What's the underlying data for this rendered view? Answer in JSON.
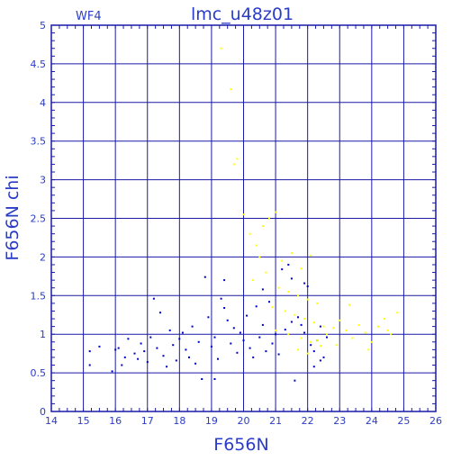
{
  "chart_data": {
    "type": "scatter",
    "title": "lmc_u48z01",
    "chip": "WF4",
    "xlabel": "F656N",
    "ylabel": "F656N chi",
    "xlim": [
      14,
      26
    ],
    "ylim": [
      0,
      5
    ],
    "xticks": [
      "14",
      "15",
      "16",
      "17",
      "18",
      "19",
      "20",
      "21",
      "22",
      "23",
      "24",
      "25",
      "26"
    ],
    "yticks": [
      "0",
      "0.5",
      "1",
      "1.5",
      "2",
      "2.5",
      "3",
      "3.5",
      "4",
      "4.5",
      "5"
    ],
    "grid": true,
    "axis_color": "#1a1aa8",
    "series": [
      {
        "color": "#0000cc",
        "points": [
          [
            15.2,
            0.78
          ],
          [
            15.2,
            0.6
          ],
          [
            15.5,
            0.84
          ],
          [
            15.9,
            0.52
          ],
          [
            16.0,
            0.8
          ],
          [
            16.1,
            0.82
          ],
          [
            16.2,
            0.6
          ],
          [
            16.3,
            0.7
          ],
          [
            16.4,
            0.94
          ],
          [
            16.6,
            0.75
          ],
          [
            16.7,
            0.68
          ],
          [
            16.8,
            0.88
          ],
          [
            16.9,
            0.78
          ],
          [
            17.0,
            0.64
          ],
          [
            17.1,
            0.96
          ],
          [
            17.2,
            1.46
          ],
          [
            17.3,
            0.82
          ],
          [
            17.4,
            1.28
          ],
          [
            17.5,
            0.72
          ],
          [
            17.6,
            0.58
          ],
          [
            17.7,
            1.05
          ],
          [
            17.8,
            0.86
          ],
          [
            17.9,
            0.66
          ],
          [
            18.0,
            0.94
          ],
          [
            18.1,
            1.02
          ],
          [
            18.2,
            0.8
          ],
          [
            18.3,
            0.7
          ],
          [
            18.4,
            1.1
          ],
          [
            18.5,
            0.62
          ],
          [
            18.6,
            0.9
          ],
          [
            18.7,
            0.42
          ],
          [
            18.8,
            1.74
          ],
          [
            18.9,
            1.22
          ],
          [
            19.0,
            0.84
          ],
          [
            19.1,
            0.96
          ],
          [
            19.2,
            0.68
          ],
          [
            19.3,
            1.46
          ],
          [
            19.4,
            1.34
          ],
          [
            19.5,
            1.18
          ],
          [
            19.6,
            0.88
          ],
          [
            19.7,
            1.08
          ],
          [
            19.8,
            0.76
          ],
          [
            19.9,
            1.02
          ],
          [
            20.0,
            0.92
          ],
          [
            20.1,
            1.24
          ],
          [
            20.2,
            0.82
          ],
          [
            20.3,
            0.7
          ],
          [
            20.4,
            1.36
          ],
          [
            20.5,
            0.96
          ],
          [
            20.6,
            1.12
          ],
          [
            20.7,
            0.78
          ],
          [
            20.8,
            1.42
          ],
          [
            20.9,
            0.88
          ],
          [
            21.0,
            1.0
          ],
          [
            21.1,
            0.74
          ],
          [
            21.2,
            1.84
          ],
          [
            21.3,
            1.06
          ],
          [
            21.4,
            1.9
          ],
          [
            21.5,
            1.16
          ],
          [
            21.6,
            0.4
          ],
          [
            21.7,
            1.22
          ],
          [
            21.8,
            1.12
          ],
          [
            21.9,
            1.02
          ],
          [
            22.0,
            1.62
          ],
          [
            22.1,
            0.86
          ],
          [
            22.2,
            0.78
          ],
          [
            22.3,
            0.92
          ],
          [
            22.4,
            1.1
          ],
          [
            22.5,
            0.7
          ],
          [
            22.6,
            0.96
          ],
          [
            22.4,
            0.66
          ],
          [
            22.2,
            0.58
          ],
          [
            19.1,
            0.42
          ],
          [
            19.4,
            1.7
          ],
          [
            20.6,
            1.58
          ],
          [
            21.5,
            1.72
          ],
          [
            21.9,
            1.66
          ]
        ]
      },
      {
        "color": "#ffff00",
        "points": [
          [
            19.3,
            4.7
          ],
          [
            19.6,
            4.17
          ],
          [
            19.8,
            3.27
          ],
          [
            19.7,
            3.2
          ],
          [
            20.0,
            2.55
          ],
          [
            20.2,
            2.3
          ],
          [
            20.4,
            2.15
          ],
          [
            20.6,
            2.4
          ],
          [
            20.8,
            2.5
          ],
          [
            21.0,
            2.58
          ],
          [
            20.5,
            2.0
          ],
          [
            21.2,
            1.95
          ],
          [
            21.5,
            2.05
          ],
          [
            21.8,
            1.85
          ],
          [
            22.1,
            2.02
          ],
          [
            20.3,
            1.7
          ],
          [
            20.7,
            1.8
          ],
          [
            21.1,
            1.6
          ],
          [
            21.4,
            1.55
          ],
          [
            21.7,
            1.5
          ],
          [
            22.0,
            1.45
          ],
          [
            22.3,
            1.4
          ],
          [
            20.9,
            1.35
          ],
          [
            21.3,
            1.3
          ],
          [
            21.6,
            1.25
          ],
          [
            21.9,
            1.2
          ],
          [
            22.2,
            1.15
          ],
          [
            22.5,
            1.1
          ],
          [
            21.0,
            1.05
          ],
          [
            21.4,
            1.0
          ],
          [
            21.8,
            0.95
          ],
          [
            22.1,
            0.9
          ],
          [
            22.4,
            0.85
          ],
          [
            21.7,
            0.8
          ],
          [
            22.0,
            0.75
          ],
          [
            22.3,
            0.92
          ],
          [
            22.6,
            1.0
          ],
          [
            22.8,
            1.08
          ],
          [
            23.0,
            1.18
          ],
          [
            23.2,
            1.05
          ],
          [
            23.4,
            0.95
          ],
          [
            23.6,
            1.12
          ],
          [
            23.8,
            1.02
          ],
          [
            24.0,
            0.9
          ],
          [
            24.2,
            1.1
          ],
          [
            24.4,
            1.2
          ],
          [
            24.6,
            1.0
          ],
          [
            24.8,
            1.28
          ],
          [
            23.3,
            1.38
          ],
          [
            23.9,
            0.8
          ],
          [
            22.9,
            0.86
          ],
          [
            24.5,
            1.05
          ]
        ]
      }
    ]
  }
}
